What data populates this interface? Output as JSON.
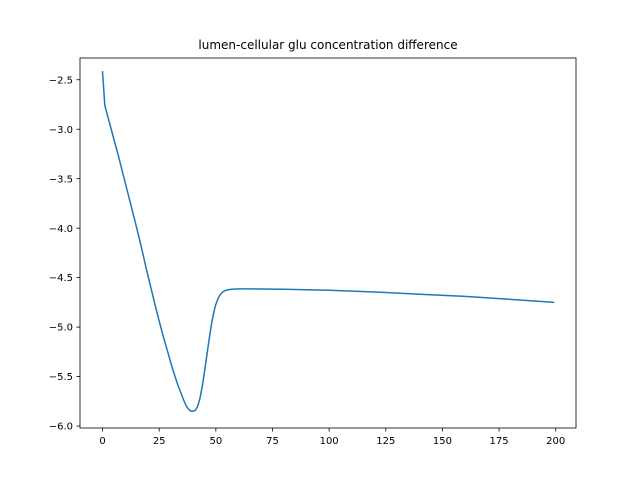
{
  "chart_data": {
    "type": "line",
    "title": "lumen-cellular glu concentration difference",
    "xlabel": "",
    "ylabel": "",
    "xlim": [
      -9.95,
      208.95
    ],
    "ylim": [
      -6.02,
      -2.28
    ],
    "xticks": [
      0,
      25,
      50,
      75,
      100,
      125,
      150,
      175,
      200
    ],
    "yticks": [
      -2.5,
      -3.0,
      -3.5,
      -4.0,
      -4.5,
      -5.0,
      -5.5,
      -6.0
    ],
    "xtick_labels": [
      "0",
      "25",
      "50",
      "75",
      "100",
      "125",
      "150",
      "175",
      "200"
    ],
    "ytick_labels": [
      "−2.5",
      "−3.0",
      "−3.5",
      "−4.0",
      "−4.5",
      "−5.0",
      "−5.5",
      "−6.0"
    ],
    "grid": false,
    "line_color": "#1f77b4",
    "series": [
      {
        "x": [
          0,
          1,
          3,
          5,
          7,
          9,
          11,
          13,
          15,
          17,
          19,
          21,
          23,
          25,
          27,
          29,
          31,
          33,
          35,
          36,
          37,
          38,
          39,
          40,
          41,
          42,
          43,
          44,
          45,
          46,
          47,
          48,
          49,
          50,
          51,
          52,
          53,
          54,
          55,
          56,
          57,
          58,
          60,
          62,
          65,
          70,
          80,
          100,
          120,
          140,
          160,
          180,
          199
        ],
        "y": [
          -2.42,
          -2.76,
          -2.93,
          -3.1,
          -3.27,
          -3.45,
          -3.63,
          -3.81,
          -3.99,
          -4.18,
          -4.38,
          -4.57,
          -4.76,
          -4.94,
          -5.11,
          -5.27,
          -5.43,
          -5.57,
          -5.69,
          -5.75,
          -5.8,
          -5.83,
          -5.85,
          -5.85,
          -5.84,
          -5.8,
          -5.72,
          -5.6,
          -5.45,
          -5.29,
          -5.13,
          -4.98,
          -4.86,
          -4.77,
          -4.71,
          -4.67,
          -4.645,
          -4.632,
          -4.625,
          -4.62,
          -4.618,
          -4.616,
          -4.614,
          -4.614,
          -4.614,
          -4.615,
          -4.617,
          -4.627,
          -4.645,
          -4.668,
          -4.69,
          -4.72,
          -4.75
        ]
      }
    ]
  }
}
